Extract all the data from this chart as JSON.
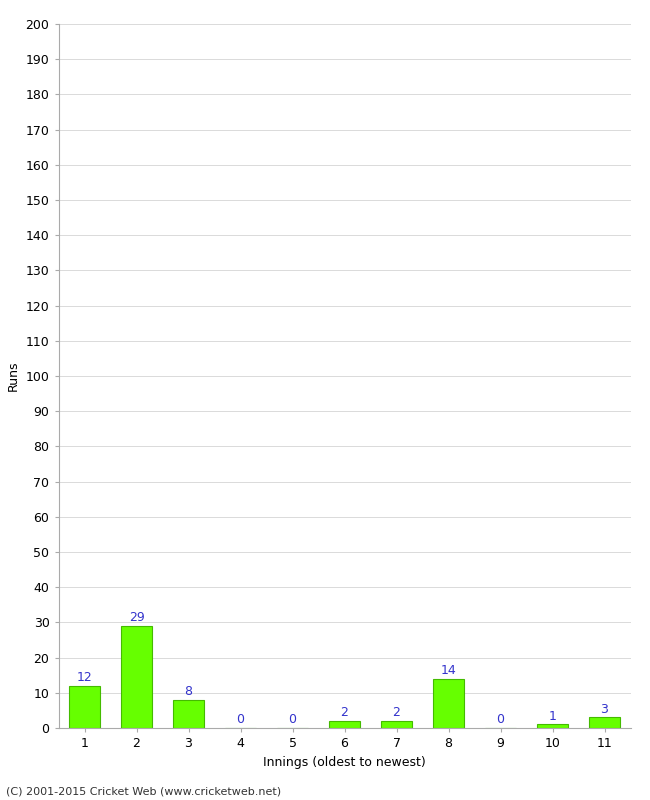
{
  "title": "",
  "xlabel": "Innings (oldest to newest)",
  "ylabel": "Runs",
  "categories": [
    1,
    2,
    3,
    4,
    5,
    6,
    7,
    8,
    9,
    10,
    11
  ],
  "values": [
    12,
    29,
    8,
    0,
    0,
    2,
    2,
    14,
    0,
    1,
    3
  ],
  "bar_color": "#66ff00",
  "bar_edge_color": "#44bb00",
  "label_color": "#3333cc",
  "ylim": [
    0,
    200
  ],
  "yticks": [
    0,
    10,
    20,
    30,
    40,
    50,
    60,
    70,
    80,
    90,
    100,
    110,
    120,
    130,
    140,
    150,
    160,
    170,
    180,
    190,
    200
  ],
  "background_color": "#ffffff",
  "grid_color": "#cccccc",
  "footer": "(C) 2001-2015 Cricket Web (www.cricketweb.net)",
  "label_fontsize": 9,
  "tick_fontsize": 9,
  "value_label_fontsize": 9,
  "footer_fontsize": 8
}
